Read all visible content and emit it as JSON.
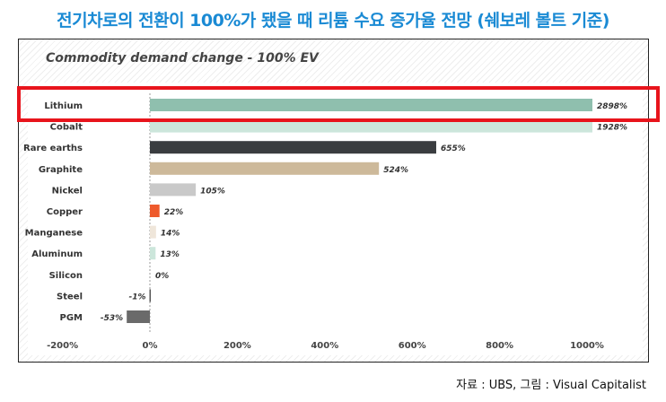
{
  "headline": "전기차로의 전환이 100%가 됐을 때 리튬 수요 증가율 전망 (쉐보레 볼트 기준)",
  "source": "자료 : UBS, 그림 : Visual Capitalist",
  "highlight_color": "#e8141c",
  "chart_data": {
    "type": "bar",
    "orientation": "horizontal",
    "title": "Commodity demand change - 100% EV",
    "categories": [
      "Lithium",
      "Cobalt",
      "Rare earths",
      "Graphite",
      "Nickel",
      "Copper",
      "Manganese",
      "Aluminum",
      "Silicon",
      "Steel",
      "PGM"
    ],
    "values": [
      2898,
      1928,
      655,
      524,
      105,
      22,
      14,
      13,
      0,
      -1,
      -53
    ],
    "value_labels": [
      "2898%",
      "1928%",
      "655%",
      "524%",
      "105%",
      "22%",
      "14%",
      "13%",
      "0%",
      "-1%",
      "-53%"
    ],
    "colors": [
      "#8fbfae",
      "#cce6db",
      "#3a3d40",
      "#cdb99a",
      "#c9c9c9",
      "#ee5a2c",
      "#efe6da",
      "#cce6db",
      "#cce6db",
      "#555555",
      "#6a6a6a"
    ],
    "emphasis_category": "Copper",
    "emphasis_color": "#ee5a2c",
    "highlighted_category": "Lithium",
    "xlim": [
      -200,
      1000
    ],
    "xticks": [
      -200,
      0,
      200,
      400,
      600,
      800,
      1000
    ],
    "xtick_labels": [
      "-200%",
      "0%",
      "200%",
      "400%",
      "600%",
      "800%",
      "1000%"
    ],
    "grid": false,
    "clipped_at_axis_max": true
  }
}
